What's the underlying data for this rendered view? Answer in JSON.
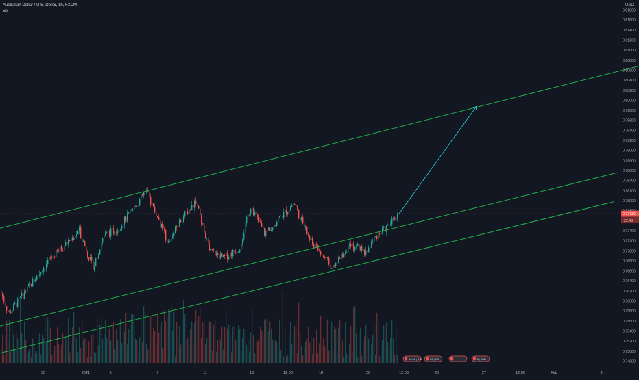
{
  "header": {
    "symbol_title": "Australian Dollar / U.S. Dollar, 1h, FXCM",
    "volume_label": "Vol",
    "currency_label": "USD"
  },
  "chart_data": {
    "type": "candlestick",
    "title": "Australian Dollar / U.S. Dollar, 1h, FXCM",
    "currency": "USD",
    "grid": false,
    "y_ticks": [
      "0.81800",
      "0.81600",
      "0.81400",
      "0.81200",
      "0.81000",
      "0.80800",
      "0.80600",
      "0.80400",
      "0.80200",
      "0.80000",
      "0.79800",
      "0.79600",
      "0.79400",
      "0.79200",
      "0.79000",
      "0.78800",
      "0.78600",
      "0.78400",
      "0.78200",
      "0.78000",
      "0.77800",
      "0.77600",
      "0.77400",
      "0.77200",
      "0.77000",
      "0.76800",
      "0.76600",
      "0.76400",
      "0.76200",
      "0.76000",
      "0.75800",
      "0.75600",
      "0.75400",
      "0.75200",
      "0.75000",
      "0.74800"
    ],
    "ylim": [
      0.7474,
      0.8194
    ],
    "top_tick_label": "0.81800",
    "x_ticks": [
      "30",
      "2021",
      "5",
      "7",
      "11",
      "13",
      "12:00",
      "18",
      "20",
      "12:00",
      "25",
      "27",
      "12:00",
      "Feb",
      "3"
    ],
    "last_price": "0.77739",
    "countdown": "22:48",
    "colors": {
      "up": "#26a69a",
      "down": "#ef5350",
      "channel": "#22b14c",
      "arrow": "#26c6da",
      "price_line": "#ef5350"
    },
    "key_prices": [
      {
        "point": "start",
        "price": 0.762
      },
      {
        "point": "low",
        "price": 0.7575
      },
      {
        "point": "rally high",
        "price": 0.774
      },
      {
        "point": "pullback",
        "price": 0.7665
      },
      {
        "point": "peak",
        "price": 0.782
      },
      {
        "point": "mid high",
        "price": 0.78
      },
      {
        "point": "mid low",
        "price": 0.7685
      },
      {
        "point": "second top",
        "price": 0.7795
      },
      {
        "point": "swing low",
        "price": 0.7664
      },
      {
        "point": "last",
        "price": 0.77739
      }
    ],
    "channel_lines": [
      {
        "name": "upper",
        "start_price": 0.7745,
        "end_price": 0.8068
      },
      {
        "name": "middle",
        "start_price": 0.755,
        "end_price": 0.7856
      },
      {
        "name": "lower",
        "start_price": 0.7496,
        "end_price": 0.7798
      }
    ],
    "projection_arrow": {
      "from_price": 0.77739,
      "to_price": 0.7988
    },
    "event_markers": [
      "13:41 | 0.5",
      "20 | 2.5",
      "",
      "8 | 8.80"
    ]
  }
}
